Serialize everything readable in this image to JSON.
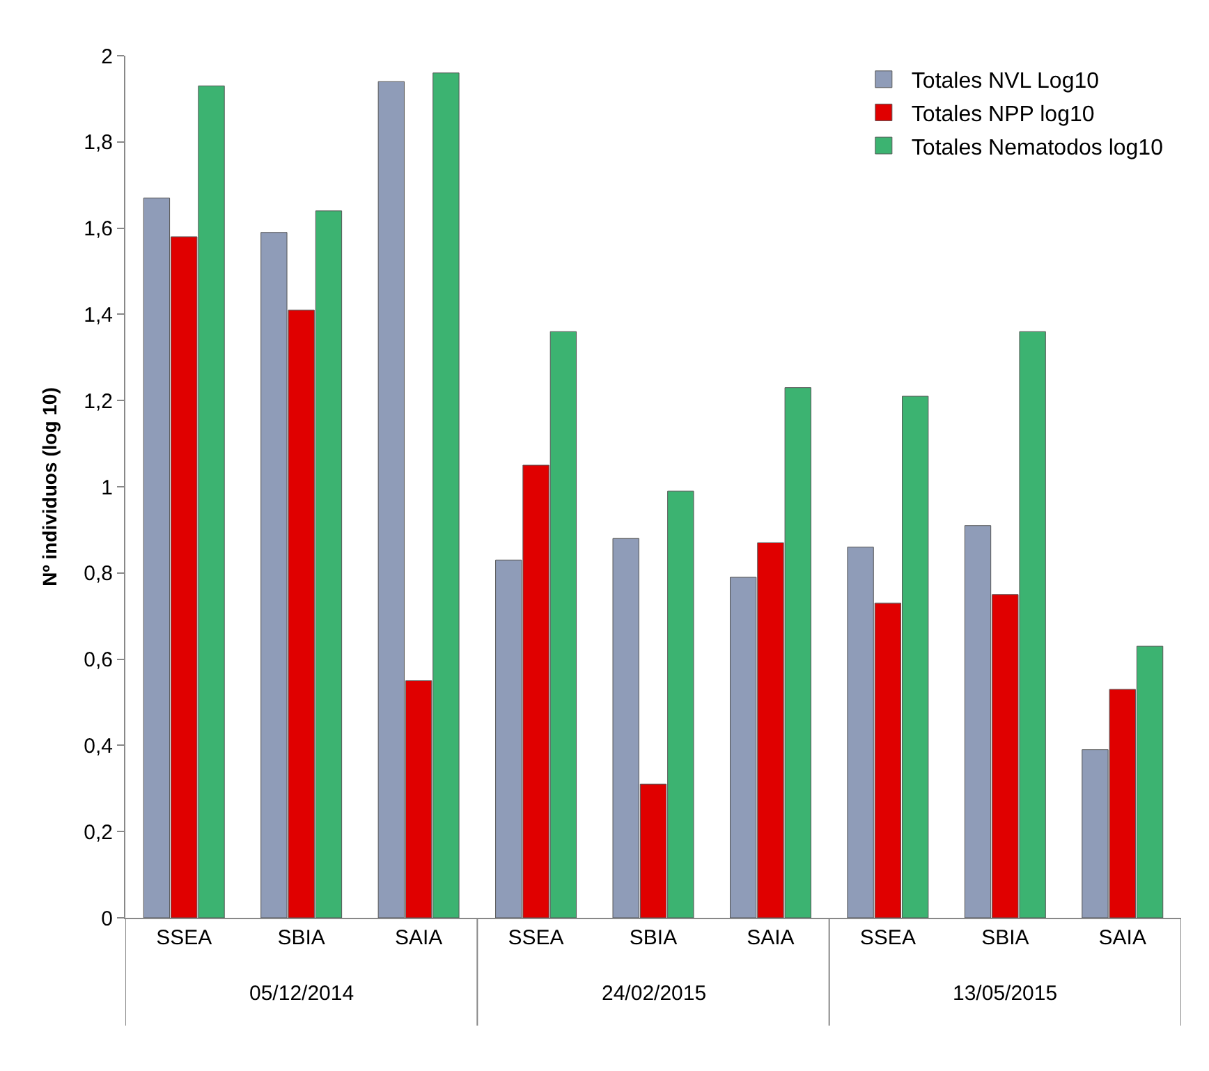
{
  "chart_data": {
    "type": "bar",
    "ylabel": "Nº individuos (log 10)",
    "categories": [
      "SSEA",
      "SBIA",
      "SAIA",
      "SSEA",
      "SBIA",
      "SAIA",
      "SSEA",
      "SBIA",
      "SAIA"
    ],
    "annotations": [
      "05/12/2014",
      "24/02/2015",
      "13/05/2015"
    ],
    "series": [
      {
        "name": "Totales NVL Log10",
        "color": "#8f9cb8",
        "values": [
          1.67,
          1.59,
          1.94,
          0.83,
          0.88,
          0.79,
          0.86,
          0.91,
          0.39
        ]
      },
      {
        "name": "Totales NPP log10",
        "color": "#e00000",
        "values": [
          1.58,
          1.41,
          0.55,
          1.05,
          0.31,
          0.87,
          0.73,
          0.75,
          0.53
        ]
      },
      {
        "name": "Totales Nematodos log10",
        "color": "#3cb371",
        "values": [
          1.93,
          1.64,
          1.96,
          1.36,
          0.99,
          1.23,
          1.21,
          1.36,
          0.63
        ]
      }
    ],
    "ylim": [
      0,
      2
    ],
    "yticks": [
      0,
      {
        "value": 0.2,
        "label": "0,2"
      },
      {
        "value": 0.4,
        "label": "0,4"
      },
      {
        "value": 0.6,
        "label": "0,6"
      },
      {
        "value": 0.8,
        "label": "0,8"
      },
      1,
      {
        "value": 1.2,
        "label": "1,2"
      },
      {
        "value": 1.4,
        "label": "1,4"
      },
      {
        "value": 1.6,
        "label": "1,6"
      },
      {
        "value": 1.8,
        "label": "1,8"
      },
      2
    ],
    "legend": "top right"
  }
}
